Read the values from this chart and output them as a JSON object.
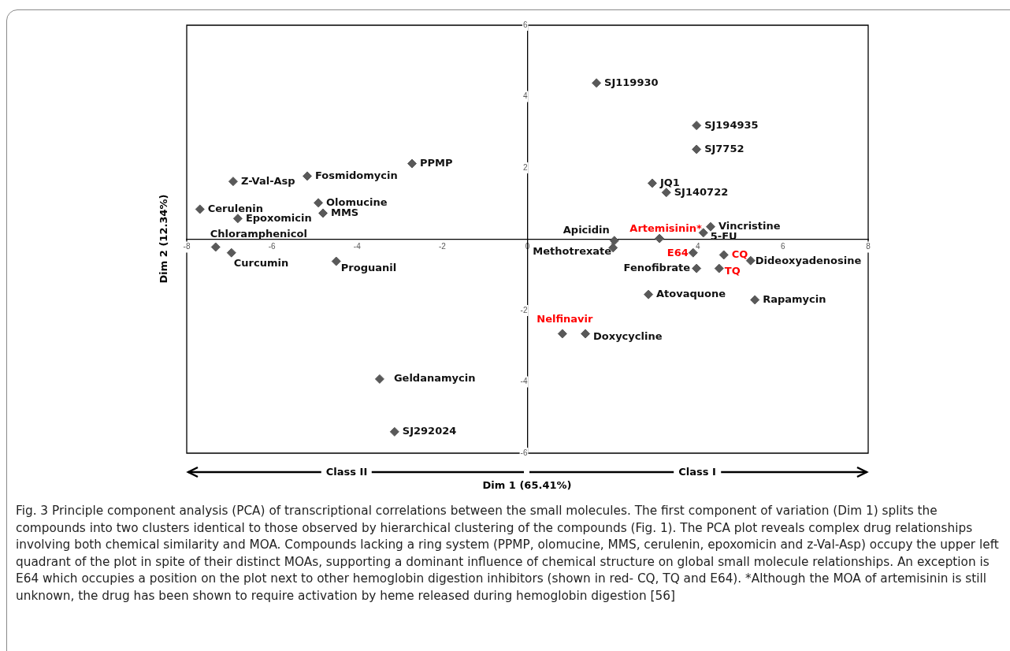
{
  "chart_data": {
    "type": "scatter",
    "xlabel": "Dim 1 (65.41%)",
    "ylabel": "Dim 2 (12.34%)",
    "xlim": [
      -8,
      8
    ],
    "xticks": [
      -8,
      -6,
      -4,
      -2,
      0,
      2,
      4,
      6,
      8
    ],
    "ylim": [
      -6,
      6
    ],
    "yticks": [
      -6,
      -4,
      -2,
      2,
      4,
      6
    ],
    "grid": false,
    "legend": false,
    "marker": "diamond",
    "series": [
      {
        "color": "#595959",
        "x": [
          1.62,
          3.97,
          3.97,
          2.93,
          3.26,
          4.3,
          4.13,
          2.04,
          2.01,
          5.24,
          3.97,
          2.84,
          5.34,
          1.36,
          -2.71,
          -5.17,
          -6.91,
          -4.91,
          -4.8,
          -7.69,
          -6.8,
          -7.32,
          -6.95,
          -4.49,
          -3.47,
          -3.12
        ],
        "values": [
          4.38,
          3.19,
          2.52,
          1.57,
          1.31,
          0.35,
          0.18,
          -0.04,
          -0.24,
          -0.6,
          -0.82,
          -1.55,
          -1.7,
          -2.65,
          2.12,
          1.77,
          1.62,
          1.02,
          0.73,
          0.84,
          0.58,
          -0.22,
          -0.38,
          -0.62,
          -3.92,
          -5.4
        ]
      },
      {
        "color": "#595959",
        "x": [
          3.1,
          3.89,
          4.61,
          4.5,
          0.82
        ],
        "values": [
          0.02,
          -0.38,
          -0.44,
          -0.82,
          -2.65
        ]
      }
    ],
    "annotations": [
      "Class II",
      "Class I",
      "Fig. 3 Principle component analysis (PCA) of transcriptional correlations between the small molecules. The first component of variation (Dim 1) splits the compounds into two clusters identical to those observed by hierarchical clustering of the compounds (Fig. 1). The PCA plot reveals complex drug relationships involving both chemical similarity and MOA. Compounds lacking a ring system (PPMP, olomucine, MMS, cerulenin, epoxomicin and z-Val-Asp) occupy the upper left quadrant of the plot in spite of their distinct MOAs, supporting a dominant influence of chemical structure on global small molecule relationships. An exception is E64 which occupies a position on the plot next to other hemoglobin digestion inhibitors (shown in red- CQ, TQ and E64). *Although the MOA of artemisinin is still unknown, the drug has been shown to require activation by heme released during hemoglobin digestion [56]",
      {
        "text": "SJ119930",
        "x": 1.62,
        "y": 4.38
      },
      {
        "text": "SJ194935",
        "x": 3.97,
        "y": 3.19
      },
      {
        "text": "SJ7752",
        "x": 3.97,
        "y": 2.52
      },
      {
        "text": "JQ1",
        "x": 2.93,
        "y": 1.57
      },
      {
        "text": "SJ140722",
        "x": 3.26,
        "y": 1.31
      },
      {
        "text": "Vincristine",
        "x": 4.3,
        "y": 0.35
      },
      {
        "text": "5-FU",
        "x": 4.13,
        "y": 0.18
      },
      {
        "text": "Apicidin",
        "x": 2.04,
        "y": -0.04
      },
      {
        "text": "Methotrexate",
        "x": 2.01,
        "y": -0.24
      },
      {
        "text": "Dideoxyadenosine",
        "x": 5.24,
        "y": -0.6
      },
      {
        "text": "Fenofibrate",
        "x": 3.97,
        "y": -0.82
      },
      {
        "text": "Atovaquone",
        "x": 2.84,
        "y": -1.55
      },
      {
        "text": "Rapamycin",
        "x": 5.34,
        "y": -1.7
      },
      {
        "text": "Doxycycline",
        "x": 1.36,
        "y": -2.65
      },
      {
        "text": "PPMP",
        "x": -2.71,
        "y": 2.12
      },
      {
        "text": "Fosmidomycin",
        "x": -5.17,
        "y": 1.77
      },
      {
        "text": "Z-Val-Asp",
        "x": -6.91,
        "y": 1.62
      },
      {
        "text": "Olomucine",
        "x": -4.91,
        "y": 1.02
      },
      {
        "text": "MMS",
        "x": -4.8,
        "y": 0.73
      },
      {
        "text": "Cerulenin",
        "x": -7.69,
        "y": 0.84
      },
      {
        "text": "Epoxomicin",
        "x": -6.8,
        "y": 0.58
      },
      {
        "text": "Chloramphenicol",
        "x": -7.32,
        "y": -0.22
      },
      {
        "text": "Curcumin",
        "x": -6.95,
        "y": -0.38
      },
      {
        "text": "Proguanil",
        "x": -4.49,
        "y": -0.62
      },
      {
        "text": "Geldanamycin",
        "x": -3.47,
        "y": -3.92
      },
      {
        "text": "SJ292024",
        "x": -3.12,
        "y": -5.4
      },
      {
        "text": "Artemisinin*",
        "x": 3.1,
        "y": 0.02
      },
      {
        "text": "E64",
        "x": 3.89,
        "y": -0.38
      },
      {
        "text": "CQ",
        "x": 4.61,
        "y": -0.44
      },
      {
        "text": "TQ",
        "x": 4.5,
        "y": -0.82
      },
      {
        "text": "Nelfinavir",
        "x": 0.82,
        "y": -2.65
      }
    ]
  }
}
